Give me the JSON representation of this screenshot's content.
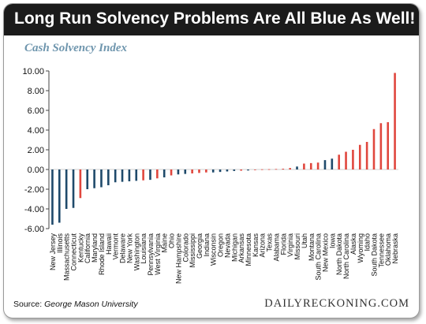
{
  "header": {
    "title": "Long Run Solvency Problems Are All Blue As Well!"
  },
  "source": {
    "label": "Source:",
    "name": "George Mason University"
  },
  "brand": "DAILYRECKONING.COM",
  "colors": {
    "blue": "#1f4a6b",
    "red": "#e0473e",
    "header_bg": "#1b1b1b",
    "title_color": "#6e95ad"
  },
  "chart_data": {
    "type": "bar",
    "title": "Cash Solvency Index",
    "xlabel": "",
    "ylabel": "",
    "ylim": [
      -6,
      10
    ],
    "yticks": [
      "-6.00",
      "-4.00",
      "-2.00",
      "0.00",
      "2.00",
      "4.00",
      "6.00",
      "8.00",
      "10.00"
    ],
    "grid": false,
    "categories": [
      "New Jersey",
      "Illinois",
      "Massachusetts",
      "Connecticut",
      "Kentucky",
      "California",
      "Maryland",
      "Rhode Island",
      "Hawaii",
      "Vermont",
      "Delaware",
      "New York",
      "Washington",
      "Louisiana",
      "Pennsylvania",
      "West Virginia",
      "Maine",
      "Ohio",
      "New Hampshire",
      "Colorado",
      "Mississippi",
      "Georgia",
      "Indiana",
      "Wisconsin",
      "Oregon",
      "Nevada",
      "Michigan",
      "Arkansas",
      "Minnesota",
      "Kansas",
      "Arizona",
      "Texas",
      "Alabama",
      "Florida",
      "Virginia",
      "Missouri",
      "Utah",
      "Montana",
      "South Carolina",
      "New Mexico",
      "Iowa",
      "North Dakota",
      "North Carolina",
      "Alaska",
      "Wyoming",
      "Idaho",
      "South Dakota",
      "Tennessee",
      "Oklahoma",
      "Nebraska"
    ],
    "values": [
      -5.6,
      -5.4,
      -4.0,
      -3.9,
      -2.9,
      -2.0,
      -1.9,
      -1.8,
      -1.6,
      -1.3,
      -1.25,
      -1.2,
      -1.15,
      -1.1,
      -1.05,
      -0.9,
      -0.8,
      -0.6,
      -0.5,
      -0.45,
      -0.4,
      -0.35,
      -0.3,
      -0.3,
      -0.25,
      -0.2,
      -0.15,
      -0.12,
      -0.1,
      -0.05,
      0.02,
      0.03,
      0.05,
      0.08,
      0.15,
      0.3,
      0.6,
      0.65,
      0.7,
      0.95,
      1.1,
      1.5,
      1.8,
      2.0,
      2.5,
      2.8,
      4.1,
      4.7,
      4.8,
      9.8
    ],
    "party": [
      "blue",
      "blue",
      "blue",
      "blue",
      "red",
      "blue",
      "blue",
      "blue",
      "blue",
      "blue",
      "blue",
      "blue",
      "blue",
      "red",
      "blue",
      "red",
      "blue",
      "red",
      "blue",
      "blue",
      "red",
      "red",
      "red",
      "blue",
      "blue",
      "blue",
      "blue",
      "red",
      "blue",
      "red",
      "red",
      "red",
      "red",
      "red",
      "red",
      "blue",
      "red",
      "red",
      "red",
      "blue",
      "blue",
      "red",
      "red",
      "red",
      "red",
      "red",
      "red",
      "red",
      "red",
      "red"
    ]
  }
}
